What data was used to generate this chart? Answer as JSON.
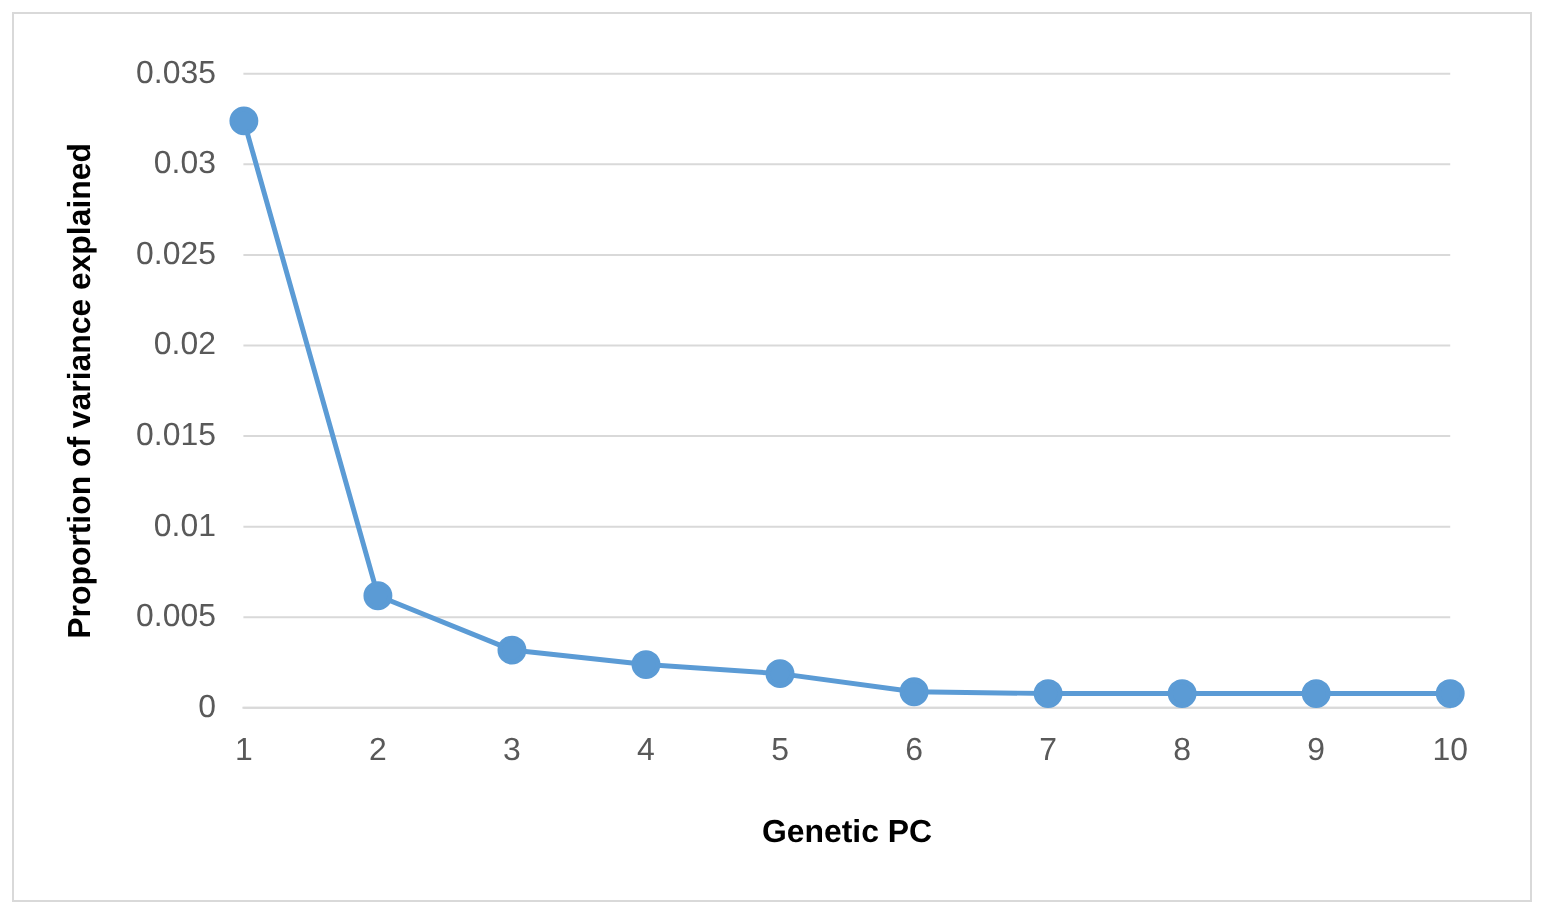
{
  "chart_data": {
    "type": "line",
    "xlabel": "Genetic PC",
    "ylabel": "Proportion of variance explained",
    "categories": [
      "1",
      "2",
      "3",
      "4",
      "5",
      "6",
      "7",
      "8",
      "9",
      "10"
    ],
    "series": [
      {
        "color": "#5b9bd5",
        "values": [
          0.0324,
          0.0062,
          0.0032,
          0.0024,
          0.0019,
          0.0009,
          0.0008,
          0.0008,
          0.0008,
          0.0008
        ]
      }
    ],
    "ylim": [
      0,
      0.035
    ],
    "yticks": [
      0,
      0.005,
      0.01,
      0.015,
      0.02,
      0.025,
      0.03,
      0.035
    ],
    "grid": "y",
    "marker": "circle",
    "line_style": "solid",
    "legend": false
  }
}
